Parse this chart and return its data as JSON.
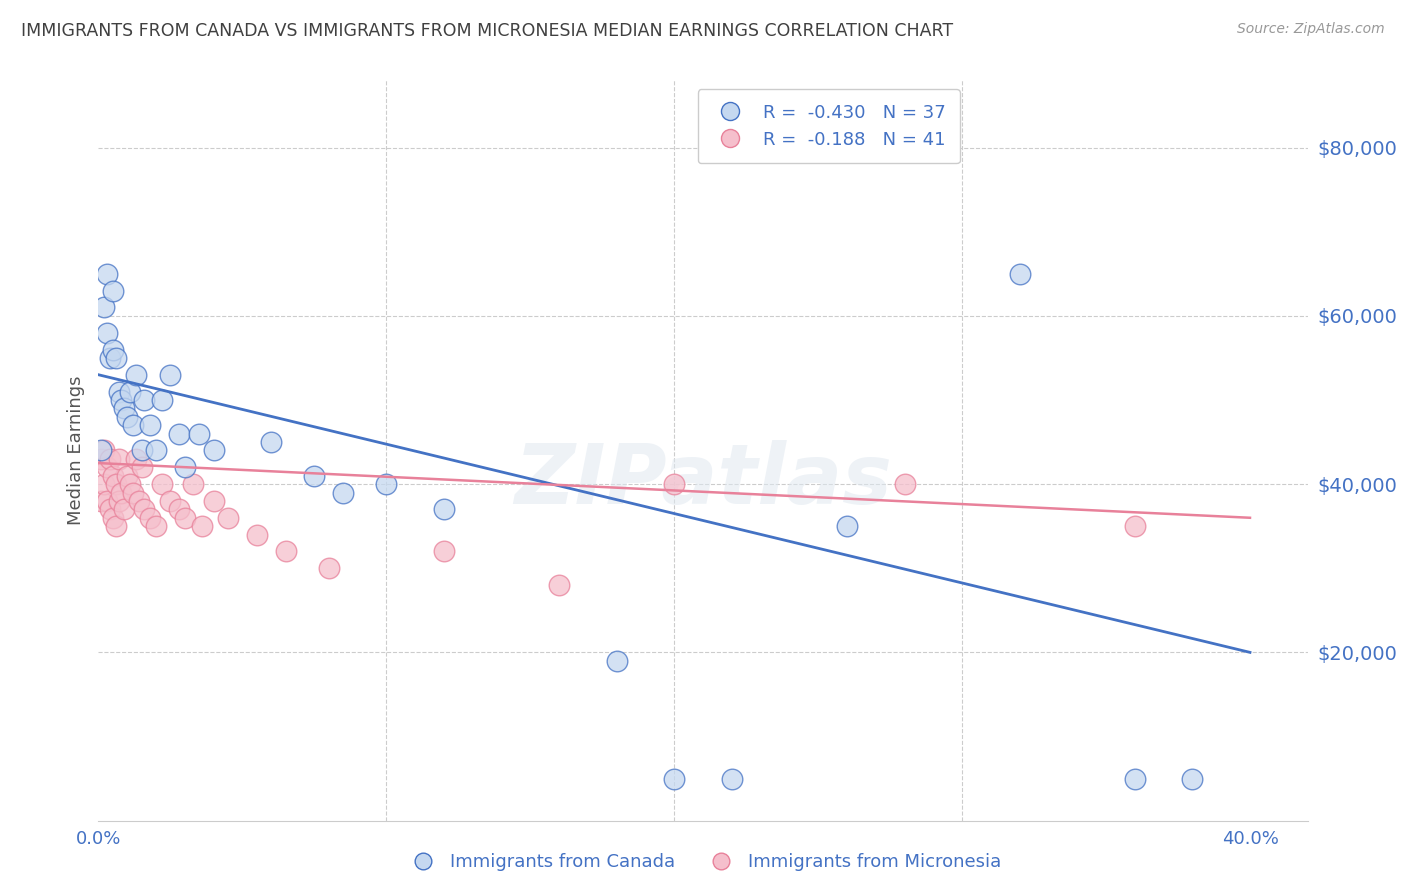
{
  "title": "IMMIGRANTS FROM CANADA VS IMMIGRANTS FROM MICRONESIA MEDIAN EARNINGS CORRELATION CHART",
  "source": "Source: ZipAtlas.com",
  "ylabel": "Median Earnings",
  "yticks": [
    0,
    20000,
    40000,
    60000,
    80000
  ],
  "ytick_labels": [
    "",
    "$20,000",
    "$40,000",
    "$60,000",
    "$80,000"
  ],
  "xlim": [
    0.0,
    0.42
  ],
  "ylim": [
    0,
    88000
  ],
  "legend1_r": "-0.430",
  "legend1_n": "37",
  "legend2_r": "-0.188",
  "legend2_n": "41",
  "blue_scatter_color": "#c5d8f0",
  "pink_scatter_color": "#f5bfcc",
  "blue_line_color": "#4472c4",
  "pink_line_color": "#e8819a",
  "axis_tick_color": "#4472c4",
  "title_color": "#404040",
  "watermark": "ZIPatlas",
  "canada_x": [
    0.001,
    0.002,
    0.003,
    0.003,
    0.004,
    0.005,
    0.005,
    0.006,
    0.007,
    0.008,
    0.009,
    0.01,
    0.011,
    0.012,
    0.013,
    0.015,
    0.016,
    0.018,
    0.02,
    0.022,
    0.025,
    0.028,
    0.03,
    0.035,
    0.04,
    0.06,
    0.075,
    0.085,
    0.1,
    0.12,
    0.18,
    0.2,
    0.22,
    0.26,
    0.32,
    0.36,
    0.38
  ],
  "canada_y": [
    44000,
    61000,
    58000,
    65000,
    55000,
    63000,
    56000,
    55000,
    51000,
    50000,
    49000,
    48000,
    51000,
    47000,
    53000,
    44000,
    50000,
    47000,
    44000,
    50000,
    53000,
    46000,
    42000,
    46000,
    44000,
    45000,
    41000,
    39000,
    40000,
    37000,
    19000,
    5000,
    5000,
    35000,
    65000,
    5000,
    5000
  ],
  "micronesia_x": [
    0.001,
    0.001,
    0.002,
    0.002,
    0.003,
    0.003,
    0.004,
    0.004,
    0.005,
    0.005,
    0.006,
    0.006,
    0.007,
    0.007,
    0.008,
    0.009,
    0.01,
    0.011,
    0.012,
    0.013,
    0.014,
    0.015,
    0.016,
    0.018,
    0.02,
    0.022,
    0.025,
    0.028,
    0.03,
    0.033,
    0.036,
    0.04,
    0.045,
    0.055,
    0.065,
    0.08,
    0.12,
    0.16,
    0.2,
    0.28,
    0.36
  ],
  "micronesia_y": [
    43000,
    38000,
    44000,
    40000,
    42000,
    38000,
    43000,
    37000,
    41000,
    36000,
    40000,
    35000,
    43000,
    38000,
    39000,
    37000,
    41000,
    40000,
    39000,
    43000,
    38000,
    42000,
    37000,
    36000,
    35000,
    40000,
    38000,
    37000,
    36000,
    40000,
    35000,
    38000,
    36000,
    34000,
    32000,
    30000,
    32000,
    28000,
    40000,
    40000,
    35000
  ],
  "canada_trendline": [
    53000,
    20000
  ],
  "micronesia_trendline": [
    42500,
    36000
  ]
}
